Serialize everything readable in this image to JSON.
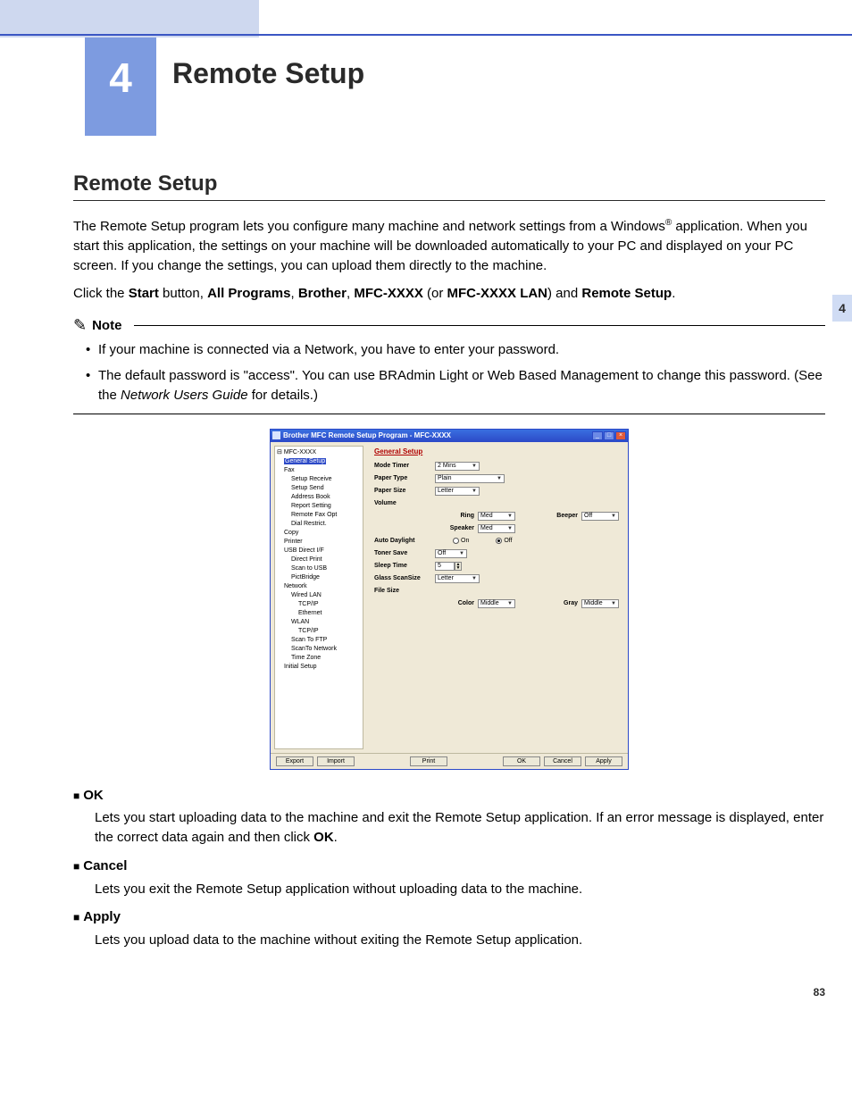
{
  "page": {
    "chapter_number": "4",
    "chapter_title": "Remote Setup",
    "section_title": "Remote Setup",
    "intro_a": "The Remote Setup program lets you configure many machine and network settings from a Windows",
    "intro_sup": "®",
    "intro_b": " application. When you start this application, the settings on your machine will be downloaded automatically to your PC and displayed on your PC screen. If you change the settings, you can upload them directly to the machine.",
    "click_a": "Click the ",
    "click_start": "Start",
    "click_b": " button, ",
    "click_allprog": "All Programs",
    "click_c": ", ",
    "click_brother": "Brother",
    "click_d": ", ",
    "click_mfc": "MFC-XXXX",
    "click_e": " (or ",
    "click_mfclan": "MFC-XXXX LAN",
    "click_f": ") and ",
    "click_remote": "Remote Setup",
    "click_g": ".",
    "note_label": "Note",
    "note_1": "If your machine is connected via a Network, you have to enter your password.",
    "note_2a": "The default password is \"access\". You can use BRAdmin Light or Web Based Management to change this password. (See the ",
    "note_2_italic": "Network Users Guide",
    "note_2b": " for details.)",
    "side_tab": "4",
    "page_number": "83"
  },
  "defs": {
    "ok_title": "OK",
    "ok_desc_a": "Lets you start uploading data to the machine and exit the Remote Setup application. If an error message is displayed, enter the correct data again and then click ",
    "ok_desc_bold": "OK",
    "ok_desc_b": ".",
    "cancel_title": "Cancel",
    "cancel_desc": "Lets you exit the Remote Setup application without uploading data to the machine.",
    "apply_title": "Apply",
    "apply_desc": "Lets you upload data to the machine without exiting the Remote Setup application."
  },
  "app": {
    "window_title": "Brother MFC Remote Setup Program - MFC-XXXX",
    "tree": {
      "root": "MFC-XXXX",
      "selected": "General Setup",
      "items": [
        {
          "t": "Fax",
          "lvl": 1
        },
        {
          "t": "Setup Receive",
          "lvl": 2
        },
        {
          "t": "Setup Send",
          "lvl": 2
        },
        {
          "t": "Address Book",
          "lvl": 2
        },
        {
          "t": "Report Setting",
          "lvl": 2
        },
        {
          "t": "Remote Fax Opt",
          "lvl": 2
        },
        {
          "t": "Dial Restrict.",
          "lvl": 2
        },
        {
          "t": "Copy",
          "lvl": 1
        },
        {
          "t": "Printer",
          "lvl": 1
        },
        {
          "t": "USB Direct I/F",
          "lvl": 1
        },
        {
          "t": "Direct Print",
          "lvl": 2
        },
        {
          "t": "Scan to USB",
          "lvl": 2
        },
        {
          "t": "PictBridge",
          "lvl": 2
        },
        {
          "t": "Network",
          "lvl": 1
        },
        {
          "t": "Wired LAN",
          "lvl": 2
        },
        {
          "t": "TCP/IP",
          "lvl": 3
        },
        {
          "t": "Ethernet",
          "lvl": 3
        },
        {
          "t": "WLAN",
          "lvl": 2
        },
        {
          "t": "TCP/IP",
          "lvl": 3
        },
        {
          "t": "Scan To FTP",
          "lvl": 2
        },
        {
          "t": "ScanTo Network",
          "lvl": 2
        },
        {
          "t": "Time Zone",
          "lvl": 2
        },
        {
          "t": "Initial Setup",
          "lvl": 1
        }
      ]
    },
    "form": {
      "heading": "General Setup",
      "mode_timer_label": "Mode Timer",
      "mode_timer_value": "2 Mins",
      "paper_type_label": "Paper Type",
      "paper_type_value": "Plain",
      "paper_size_label": "Paper Size",
      "paper_size_value": "Letter",
      "volume_label": "Volume",
      "ring_label": "Ring",
      "ring_value": "Med",
      "beeper_label": "Beeper",
      "beeper_value": "Off",
      "speaker_label": "Speaker",
      "speaker_value": "Med",
      "auto_daylight_label": "Auto Daylight",
      "auto_daylight_on": "On",
      "auto_daylight_off": "Off",
      "auto_daylight_selected": "Off",
      "toner_save_label": "Toner Save",
      "toner_save_value": "Off",
      "sleep_time_label": "Sleep Time",
      "sleep_time_value": "5",
      "glass_scan_label": "Glass ScanSize",
      "glass_scan_value": "Letter",
      "file_size_label": "File Size",
      "color_label": "Color",
      "color_value": "Middle",
      "gray_label": "Gray",
      "gray_value": "Middle"
    },
    "buttons": {
      "export": "Export",
      "import": "Import",
      "print": "Print",
      "ok": "OK",
      "cancel": "Cancel",
      "apply": "Apply"
    }
  },
  "colors": {
    "accent_light": "#ced8ef",
    "chapter_box": "#7d9be0",
    "titlebar": "#2c49c7",
    "form_bg": "#efe9d7",
    "heading_red": "#b00000"
  }
}
